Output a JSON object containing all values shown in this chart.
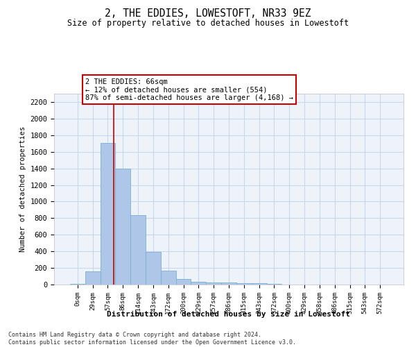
{
  "title": "2, THE EDDIES, LOWESTOFT, NR33 9EZ",
  "subtitle": "Size of property relative to detached houses in Lowestoft",
  "xlabel": "Distribution of detached houses by size in Lowestoft",
  "ylabel": "Number of detached properties",
  "bar_labels": [
    "0sqm",
    "29sqm",
    "57sqm",
    "86sqm",
    "114sqm",
    "143sqm",
    "172sqm",
    "200sqm",
    "229sqm",
    "257sqm",
    "286sqm",
    "315sqm",
    "343sqm",
    "372sqm",
    "400sqm",
    "429sqm",
    "458sqm",
    "486sqm",
    "515sqm",
    "543sqm",
    "572sqm"
  ],
  "bar_values": [
    10,
    155,
    1710,
    1400,
    835,
    390,
    165,
    65,
    35,
    25,
    25,
    20,
    15,
    5,
    0,
    0,
    0,
    0,
    0,
    0,
    0
  ],
  "bar_color": "#aec6e8",
  "bar_edge_color": "#7aafd4",
  "red_line_x": 2.37,
  "annotation_text": "2 THE EDDIES: 66sqm\n← 12% of detached houses are smaller (554)\n87% of semi-detached houses are larger (4,168) →",
  "annotation_box_color": "#ffffff",
  "annotation_box_edge": "#cc0000",
  "ylim": [
    0,
    2300
  ],
  "yticks": [
    0,
    200,
    400,
    600,
    800,
    1000,
    1200,
    1400,
    1600,
    1800,
    2000,
    2200
  ],
  "grid_color": "#c8d8ea",
  "bg_color": "#eef3f9",
  "footer_line1": "Contains HM Land Registry data © Crown copyright and database right 2024.",
  "footer_line2": "Contains public sector information licensed under the Open Government Licence v3.0."
}
